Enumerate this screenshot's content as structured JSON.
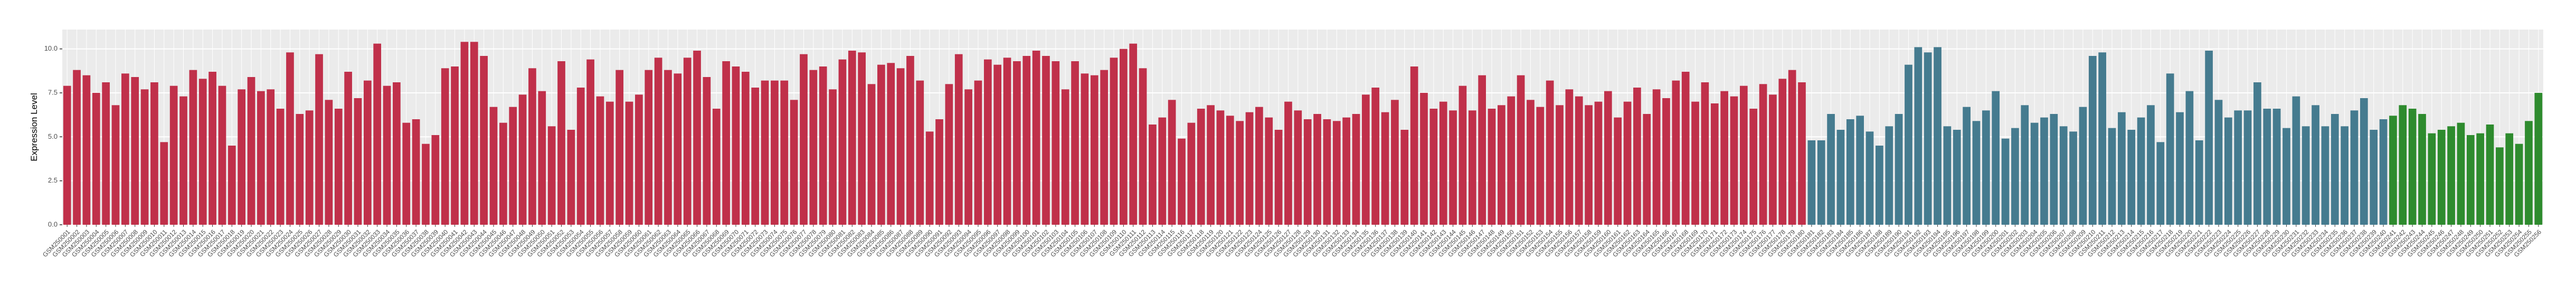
{
  "chart_data": {
    "type": "bar",
    "y_label": "Expression Level",
    "ylim": [
      0,
      11.1
    ],
    "yticks": [
      {
        "value": 0,
        "label": "0.0"
      },
      2.5,
      {
        "value": 5,
        "label": "5.0"
      },
      7.5,
      {
        "value": 10,
        "label": "10.0"
      }
    ],
    "grid": true,
    "groups": [
      {
        "color": "#c0304a",
        "categories": [
          "GSM250001",
          "GSM250002",
          "GSM250003",
          "GSM250004",
          "GSM250005",
          "GSM250006",
          "GSM250007",
          "GSM250008",
          "GSM250009",
          "GSM250010",
          "GSM250011",
          "GSM250012",
          "GSM250013",
          "GSM250014",
          "GSM250015",
          "GSM250016",
          "GSM250017",
          "GSM250018",
          "GSM250019",
          "GSM250020",
          "GSM250021",
          "GSM250022",
          "GSM250023",
          "GSM250024",
          "GSM250025",
          "GSM250026",
          "GSM250027",
          "GSM250028",
          "GSM250029",
          "GSM250030",
          "GSM250031",
          "GSM250032",
          "GSM250033",
          "GSM250034",
          "GSM250035",
          "GSM250036",
          "GSM250037",
          "GSM250038",
          "GSM250039",
          "GSM250040",
          "GSM250041",
          "GSM250042",
          "GSM250043",
          "GSM250044",
          "GSM250045",
          "GSM250046",
          "GSM250047",
          "GSM250048",
          "GSM250049",
          "GSM250050",
          "GSM250051",
          "GSM250052",
          "GSM250053",
          "GSM250054",
          "GSM250055",
          "GSM250056",
          "GSM250057",
          "GSM250058",
          "GSM250059",
          "GSM250060",
          "GSM250061",
          "GSM250062",
          "GSM250063",
          "GSM250064",
          "GSM250065",
          "GSM250066",
          "GSM250067",
          "GSM250068",
          "GSM250069",
          "GSM250070",
          "GSM250071",
          "GSM250072",
          "GSM250073",
          "GSM250074",
          "GSM250075",
          "GSM250076",
          "GSM250077",
          "GSM250078",
          "GSM250079",
          "GSM250080",
          "GSM250081",
          "GSM250082",
          "GSM250083",
          "GSM250084",
          "GSM250085",
          "GSM250086",
          "GSM250087",
          "GSM250088",
          "GSM250089",
          "GSM250090",
          "GSM250091",
          "GSM250092",
          "GSM250093",
          "GSM250094",
          "GSM250095",
          "GSM250096",
          "GSM250097",
          "GSM250098",
          "GSM250099",
          "GSM250100",
          "GSM250101",
          "GSM250102",
          "GSM250103",
          "GSM250104",
          "GSM250105",
          "GSM250106",
          "GSM250107",
          "GSM250108",
          "GSM250109",
          "GSM250110",
          "GSM250111",
          "GSM250112",
          "GSM250113",
          "GSM250114",
          "GSM250115",
          "GSM250116",
          "GSM250117",
          "GSM250118",
          "GSM250119",
          "GSM250120",
          "GSM250121",
          "GSM250122",
          "GSM250123",
          "GSM250124",
          "GSM250125",
          "GSM250126",
          "GSM250127",
          "GSM250128",
          "GSM250129",
          "GSM250130",
          "GSM250131",
          "GSM250132",
          "GSM250133",
          "GSM250134",
          "GSM250135",
          "GSM250136",
          "GSM250137",
          "GSM250138",
          "GSM250139",
          "GSM250140",
          "GSM250141",
          "GSM250142",
          "GSM250143",
          "GSM250144",
          "GSM250145",
          "GSM250146",
          "GSM250147",
          "GSM250148",
          "GSM250149",
          "GSM250150",
          "GSM250151",
          "GSM250152",
          "GSM250153",
          "GSM250154",
          "GSM250155",
          "GSM250156",
          "GSM250157",
          "GSM250158",
          "GSM250159",
          "GSM250160",
          "GSM250161",
          "GSM250162",
          "GSM250163",
          "GSM250164",
          "GSM250165",
          "GSM250166",
          "GSM250167",
          "GSM250168",
          "GSM250169",
          "GSM250170",
          "GSM250171",
          "GSM250172",
          "GSM250173",
          "GSM250174",
          "GSM250175",
          "GSM250176",
          "GSM250177",
          "GSM250178",
          "GSM250179",
          "GSM250180"
        ],
        "values": [
          7.9,
          8.8,
          8.5,
          7.5,
          8.1,
          6.8,
          8.6,
          8.4,
          7.7,
          8.1,
          4.7,
          7.9,
          7.3,
          8.8,
          8.3,
          8.7,
          7.9,
          4.5,
          7.7,
          8.4,
          7.6,
          7.7,
          6.6,
          9.8,
          6.3,
          6.5,
          9.7,
          7.1,
          6.6,
          8.7,
          7.2,
          8.2,
          10.3,
          7.9,
          8.1,
          5.8,
          6.0,
          4.6,
          5.1,
          8.9,
          9.0,
          10.4,
          10.4,
          9.6,
          6.7,
          5.8,
          6.7,
          7.4,
          8.9,
          7.6,
          5.6,
          9.3,
          5.4,
          7.8,
          9.4,
          7.3,
          7.0,
          8.8,
          7.0,
          7.4,
          8.8,
          9.5,
          8.8,
          8.6,
          9.5,
          9.9,
          8.4,
          6.6,
          9.3,
          9.0,
          8.7,
          7.8,
          8.2,
          8.2,
          8.2,
          7.1,
          9.7,
          8.8,
          9.0,
          7.7,
          9.4,
          9.9,
          9.8,
          8.0,
          9.1,
          9.2,
          8.9,
          9.6,
          8.2,
          5.3,
          6.0,
          8.0,
          9.7,
          7.7,
          8.2,
          9.4,
          9.1,
          9.5,
          9.3,
          9.6,
          9.9,
          9.6,
          9.3,
          7.7,
          9.3,
          8.6,
          8.5,
          8.8,
          9.5,
          10.0,
          10.3,
          8.9,
          5.7,
          6.1,
          7.1,
          4.9,
          5.8,
          6.6,
          6.8,
          6.5,
          6.2,
          5.9,
          6.4,
          6.7,
          6.1,
          5.4,
          7.0,
          6.5,
          6.0,
          6.3,
          6.0,
          5.9,
          6.1,
          6.3,
          7.4,
          7.8,
          6.4,
          7.1,
          5.4,
          9.0,
          7.5,
          6.6,
          7.0,
          6.5,
          7.9,
          6.5,
          8.5,
          6.6,
          6.8,
          7.3,
          8.5,
          7.1,
          6.7,
          8.2,
          6.8,
          7.7,
          7.3,
          6.8,
          7.0,
          7.6,
          6.1,
          7.0,
          7.8,
          6.3,
          7.7,
          7.2,
          8.2,
          8.7,
          7.0,
          8.1,
          6.9,
          7.6,
          7.3,
          7.9,
          6.6,
          8.0,
          7.4,
          8.3,
          8.8,
          8.1
        ]
      },
      {
        "color": "#457b8f",
        "categories": [
          "GSM250181",
          "GSM250182",
          "GSM250183",
          "GSM250184",
          "GSM250185",
          "GSM250186",
          "GSM250187",
          "GSM250188",
          "GSM250189",
          "GSM250190",
          "GSM250191",
          "GSM250192",
          "GSM250193",
          "GSM250194",
          "GSM250195",
          "GSM250196",
          "GSM250197",
          "GSM250198",
          "GSM250199",
          "GSM250200",
          "GSM250201",
          "GSM250202",
          "GSM250203",
          "GSM250204",
          "GSM250205",
          "GSM250206",
          "GSM250207",
          "GSM250208",
          "GSM250209",
          "GSM250210",
          "GSM250211",
          "GSM250212",
          "GSM250213",
          "GSM250214",
          "GSM250215",
          "GSM250216",
          "GSM250217",
          "GSM250218",
          "GSM250219",
          "GSM250220",
          "GSM250221",
          "GSM250222",
          "GSM250223",
          "GSM250224",
          "GSM250225",
          "GSM250226",
          "GSM250227",
          "GSM250228",
          "GSM250229",
          "GSM250230",
          "GSM250231",
          "GSM250232",
          "GSM250233",
          "GSM250234",
          "GSM250235",
          "GSM250236",
          "GSM250237",
          "GSM250238",
          "GSM250239",
          "GSM250240"
        ],
        "values": [
          4.8,
          4.8,
          6.3,
          5.4,
          6.0,
          6.2,
          5.3,
          4.5,
          5.6,
          6.3,
          9.1,
          10.1,
          9.8,
          10.1,
          5.6,
          5.4,
          6.7,
          5.9,
          6.5,
          7.6,
          4.9,
          5.5,
          6.8,
          5.8,
          6.1,
          6.3,
          5.6,
          5.3,
          6.7,
          9.6,
          9.8,
          5.5,
          6.4,
          5.4,
          6.1,
          6.8,
          4.7,
          8.6,
          6.4,
          7.6,
          4.8,
          9.9,
          7.1,
          6.1,
          6.5,
          6.5,
          8.1,
          6.6,
          6.6,
          5.5,
          7.3,
          5.6,
          6.8,
          5.6,
          6.3,
          5.6,
          6.5,
          7.2,
          5.4,
          6.0
        ]
      },
      {
        "color": "#2e8b2e",
        "categories": [
          "GSM250241",
          "GSM250242",
          "GSM250243",
          "GSM250244",
          "GSM250245",
          "GSM250246",
          "GSM250247",
          "GSM250248",
          "GSM250249",
          "GSM250250",
          "GSM250251",
          "GSM250252",
          "GSM250253",
          "GSM250254",
          "GSM250255",
          "GSM250256"
        ],
        "values": [
          6.2,
          6.8,
          6.6,
          6.3,
          5.2,
          5.4,
          5.6,
          5.8,
          5.1,
          5.2,
          5.7,
          4.4,
          5.2,
          4.6,
          5.9,
          7.5
        ]
      }
    ]
  }
}
